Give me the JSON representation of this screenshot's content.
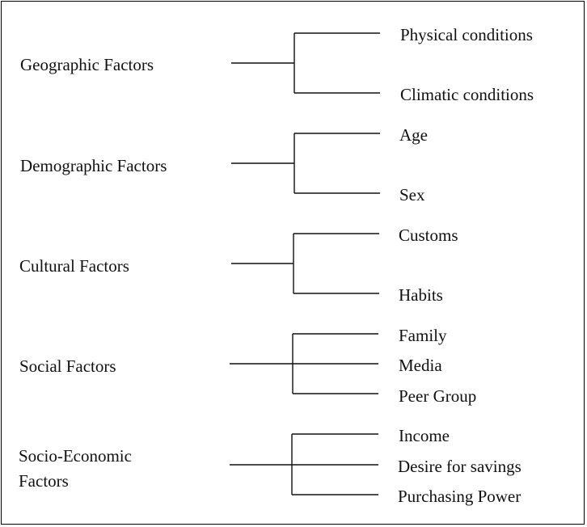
{
  "groups": [
    {
      "label": "Geographic Factors",
      "items": [
        "Physical conditions",
        "Climatic conditions"
      ]
    },
    {
      "label": "Demographic Factors",
      "items": [
        "Age",
        "Sex"
      ]
    },
    {
      "label": "Cultural Factors",
      "items": [
        "Customs",
        "Habits"
      ]
    },
    {
      "label": "Social Factors",
      "items": [
        "Family",
        "Media",
        "Peer Group"
      ]
    },
    {
      "label": [
        "Socio-Economic",
        "Factors"
      ],
      "items": [
        "Income",
        "Desire for savings",
        "Purchasing Power"
      ]
    }
  ]
}
